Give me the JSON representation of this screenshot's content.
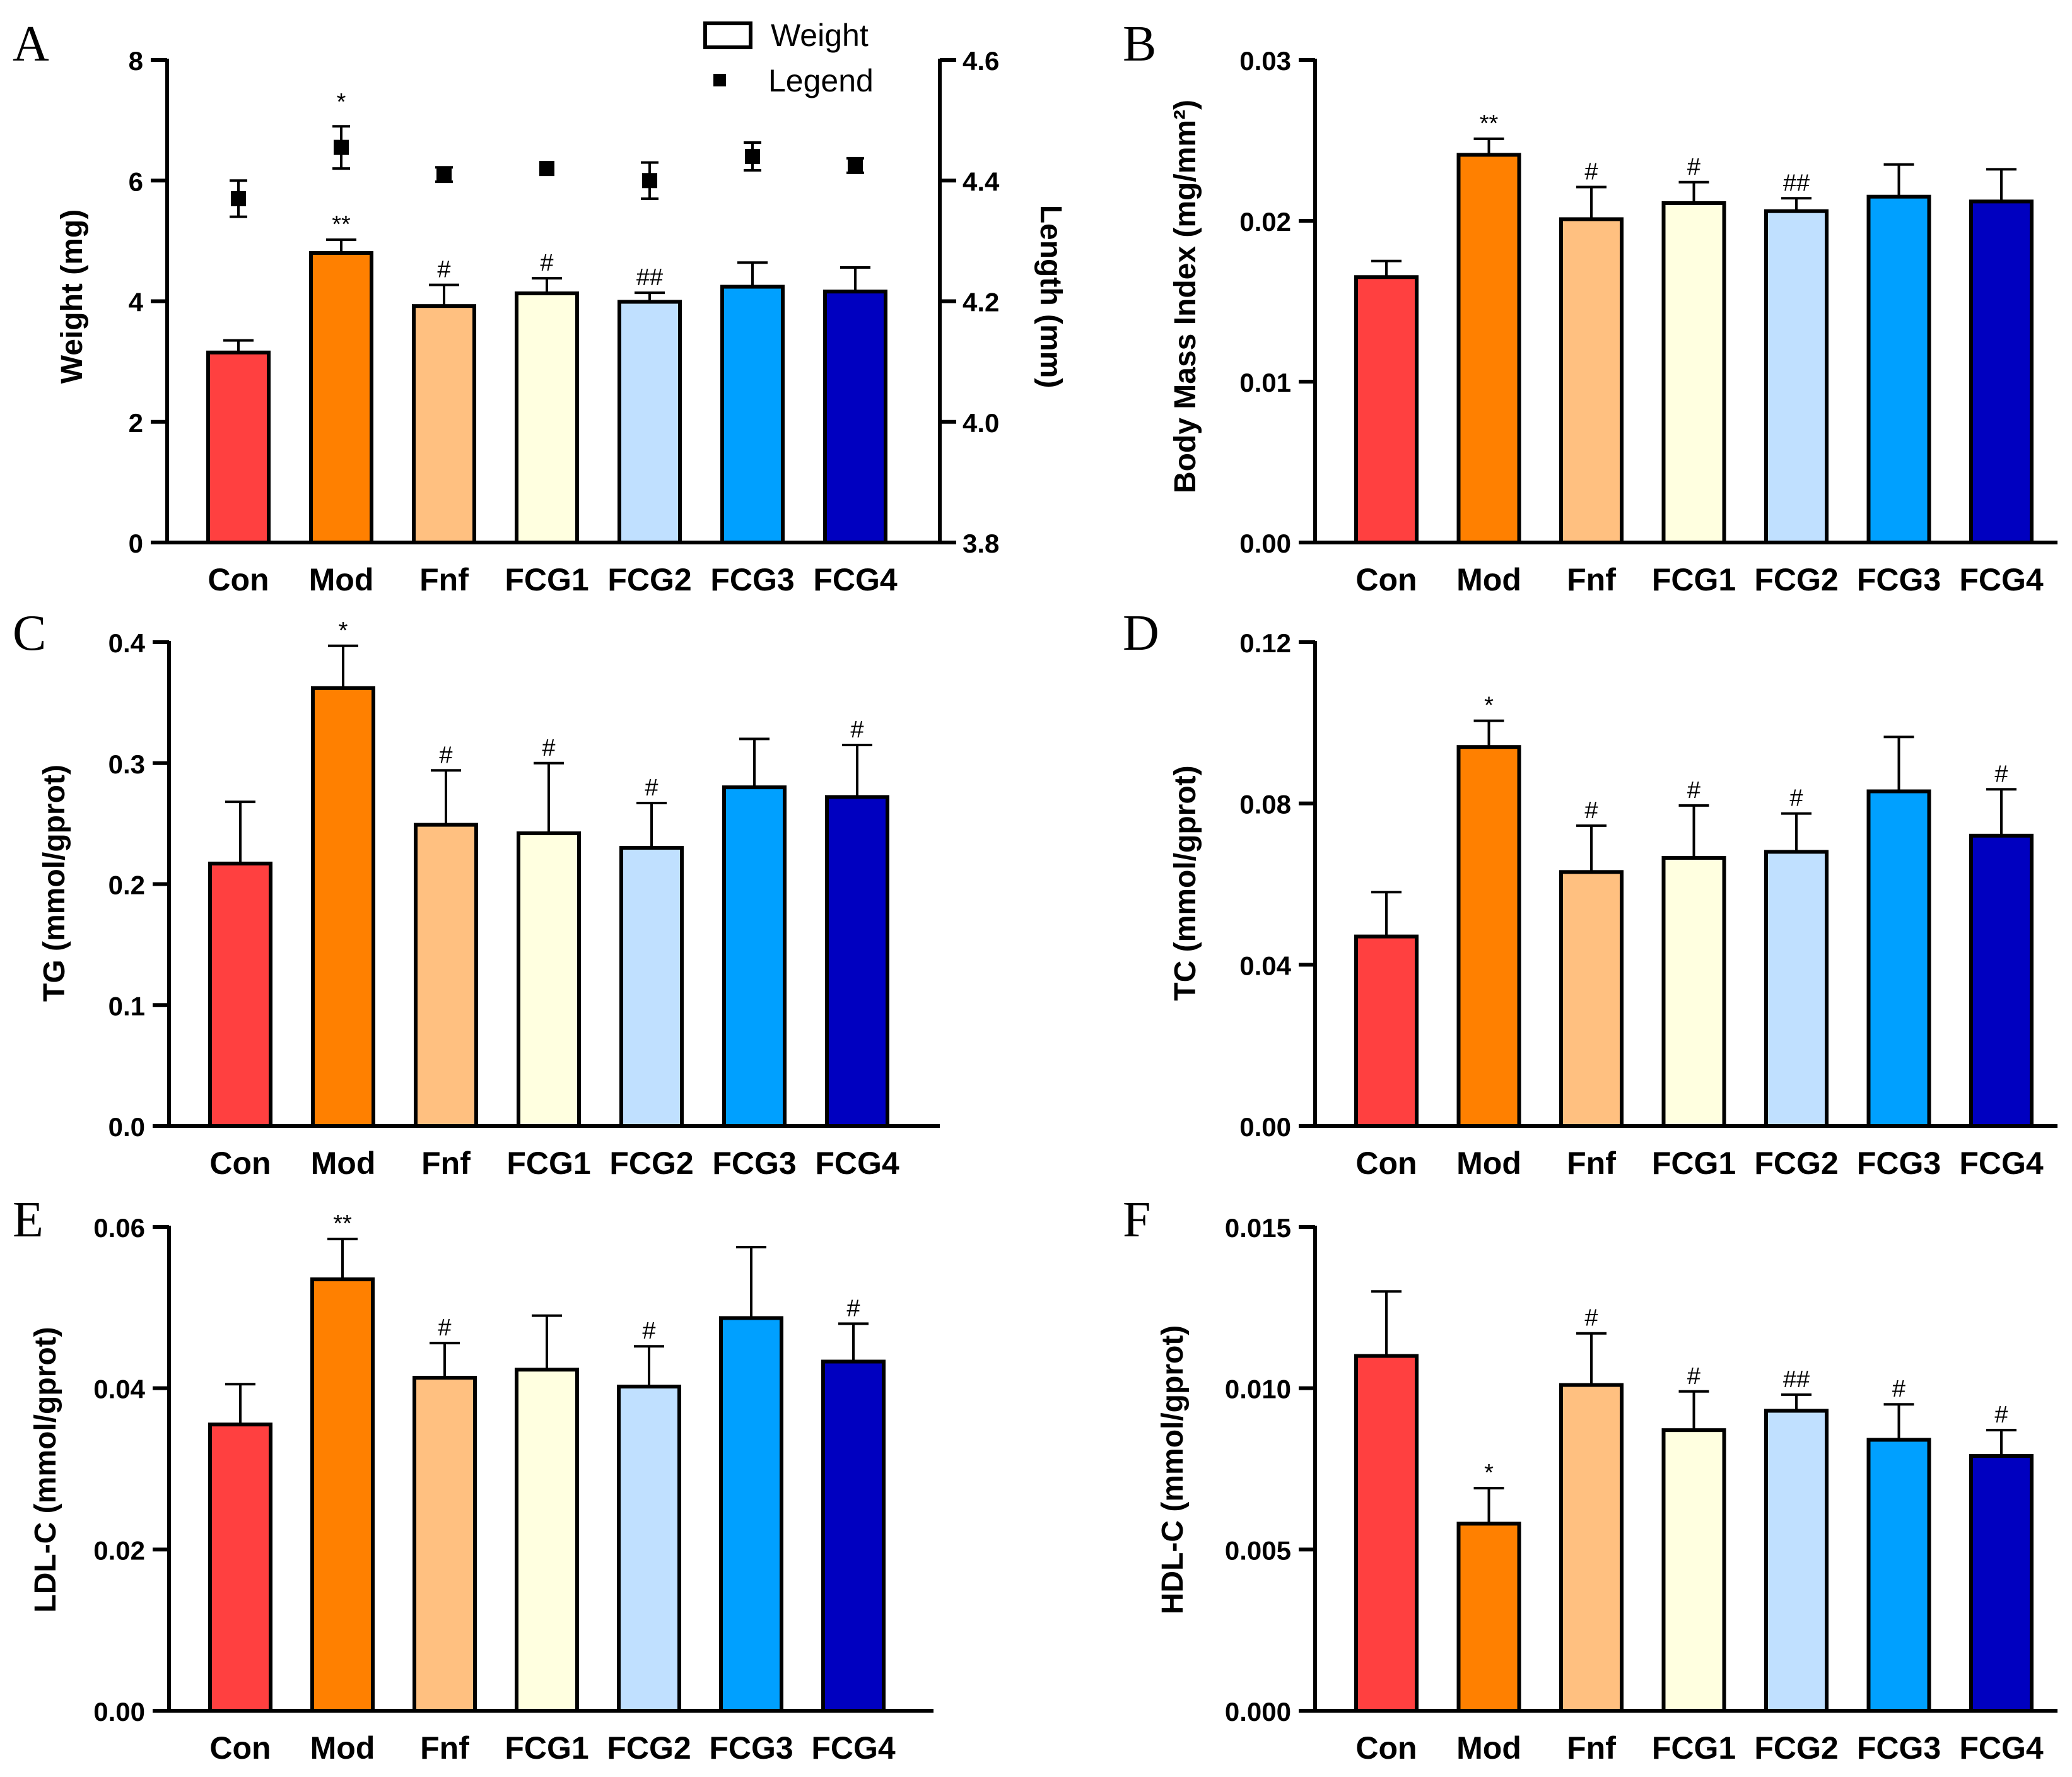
{
  "colors": [
    "#ff4040",
    "#ff8000",
    "#ffc080",
    "#ffffe0",
    "#c0e0ff",
    "#00a0ff",
    "#0000c0"
  ],
  "chart_data": [
    {
      "type": "bar",
      "panel": "A",
      "categories": [
        "Con",
        "Mod",
        "Fnf",
        "FCG1",
        "FCG2",
        "FCG3",
        "FCG4"
      ],
      "ylabel": "Weight (mg)",
      "ylim": [
        0,
        8
      ],
      "yticks": [
        "0",
        "2",
        "4",
        "6",
        "8"
      ],
      "values": [
        3.15,
        4.8,
        3.92,
        4.13,
        3.99,
        4.24,
        4.16
      ],
      "errors": [
        0.2,
        0.22,
        0.35,
        0.25,
        0.15,
        0.4,
        0.4
      ],
      "annotations": [
        "",
        "**",
        "#",
        "#",
        "##",
        "",
        ""
      ],
      "y2label": "Length (mm)",
      "y2lim": [
        3.8,
        4.6
      ],
      "y2ticks": [
        "3.8",
        "4.0",
        "4.2",
        "4.4",
        "4.6"
      ],
      "points": [
        4.37,
        4.455,
        4.41,
        4.42,
        4.4,
        4.44,
        4.425
      ],
      "point_errors": [
        0.03,
        0.035,
        0.012,
        0.0,
        0.03,
        0.023,
        0.012
      ],
      "point_annotations": [
        "",
        "*",
        "",
        "",
        "",
        "",
        ""
      ],
      "legend": [
        "Weight",
        "Legend"
      ]
    },
    {
      "type": "bar",
      "panel": "B",
      "categories": [
        "Con",
        "Mod",
        "Fnf",
        "FCG1",
        "FCG2",
        "FCG3",
        "FCG4"
      ],
      "ylabel": "Body Mass Index (mg/mm²)",
      "ylim": [
        0,
        0.03
      ],
      "yticks": [
        "0.00",
        "0.01",
        "0.02",
        "0.03"
      ],
      "values": [
        0.0165,
        0.0241,
        0.0201,
        0.0211,
        0.0206,
        0.0215,
        0.0212
      ],
      "errors": [
        0.001,
        0.001,
        0.002,
        0.0013,
        0.0008,
        0.002,
        0.002
      ],
      "annotations": [
        "",
        "**",
        "#",
        "#",
        "##",
        "",
        ""
      ]
    },
    {
      "type": "bar",
      "panel": "C",
      "categories": [
        "Con",
        "Mod",
        "Fnf",
        "FCG1",
        "FCG2",
        "FCG3",
        "FCG4"
      ],
      "ylabel": "TG (mmol/gprot)",
      "ylim": [
        0,
        0.4
      ],
      "yticks": [
        "0.0",
        "0.1",
        "0.2",
        "0.3",
        "0.4"
      ],
      "values": [
        0.217,
        0.362,
        0.249,
        0.242,
        0.23,
        0.28,
        0.272
      ],
      "errors": [
        0.051,
        0.035,
        0.045,
        0.058,
        0.037,
        0.04,
        0.043
      ],
      "annotations": [
        "",
        "*",
        "#",
        "#",
        "#",
        "",
        "#"
      ]
    },
    {
      "type": "bar",
      "panel": "D",
      "categories": [
        "Con",
        "Mod",
        "Fnf",
        "FCG1",
        "FCG2",
        "FCG3",
        "FCG4"
      ],
      "ylabel": "TC (mmol/gprot)",
      "ylim": [
        0,
        0.12
      ],
      "yticks": [
        "0.00",
        "0.04",
        "0.08",
        "0.12"
      ],
      "values": [
        0.047,
        0.094,
        0.063,
        0.0665,
        0.068,
        0.083,
        0.072
      ],
      "errors": [
        0.011,
        0.0065,
        0.0115,
        0.013,
        0.0095,
        0.0135,
        0.0115
      ],
      "annotations": [
        "",
        "*",
        "#",
        "#",
        "#",
        "",
        "#"
      ]
    },
    {
      "type": "bar",
      "panel": "E",
      "categories": [
        "Con",
        "Mod",
        "Fnf",
        "FCG1",
        "FCG2",
        "FCG3",
        "FCG4"
      ],
      "ylabel": "LDL-C (mmol/gprot)",
      "ylim": [
        0,
        0.06
      ],
      "yticks": [
        "0.00",
        "0.02",
        "0.04",
        "0.06"
      ],
      "values": [
        0.0355,
        0.0535,
        0.0413,
        0.0423,
        0.0402,
        0.0487,
        0.0433
      ],
      "errors": [
        0.005,
        0.005,
        0.0043,
        0.0067,
        0.005,
        0.0088,
        0.0047
      ],
      "annotations": [
        "",
        "**",
        "#",
        "",
        "#",
        "",
        "#"
      ]
    },
    {
      "type": "bar",
      "panel": "F",
      "categories": [
        "Con",
        "Mod",
        "Fnf",
        "FCG1",
        "FCG2",
        "FCG3",
        "FCG4"
      ],
      "ylabel": "HDL-C (mmol/gprot)",
      "ylim": [
        0,
        0.015
      ],
      "yticks": [
        "0.000",
        "0.005",
        "0.010",
        "0.015"
      ],
      "values": [
        0.011,
        0.0058,
        0.0101,
        0.0087,
        0.0093,
        0.0084,
        0.0079
      ],
      "errors": [
        0.002,
        0.0011,
        0.0016,
        0.0012,
        0.0005,
        0.0011,
        0.0008
      ],
      "annotations": [
        "",
        "*",
        "#",
        "#",
        "##",
        "#",
        "#"
      ]
    }
  ]
}
